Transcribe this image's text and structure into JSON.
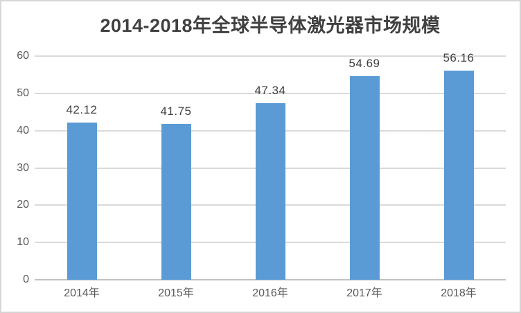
{
  "frame": {
    "background": "#FFFFFF",
    "border_color": "#D6D6D6"
  },
  "chart_data": {
    "type": "bar",
    "title": "2014-2018年全球半导体激光器市场规模",
    "categories": [
      "2014年",
      "2015年",
      "2016年",
      "2017年",
      "2018年"
    ],
    "values": [
      42.12,
      41.75,
      47.34,
      54.69,
      56.16
    ],
    "data_labels": [
      "42.12",
      "41.75",
      "47.34",
      "54.69",
      "56.16"
    ],
    "xlabel": "",
    "ylabel": "",
    "ylim": [
      0,
      60
    ],
    "yticks": [
      0,
      10,
      20,
      30,
      40,
      50,
      60
    ],
    "grid": true,
    "legend": "none",
    "colors": {
      "bar": "#5B9BD5",
      "gridline": "#DADADA",
      "axis_line": "#C0C0C0",
      "tick_label": "#595959",
      "category_label": "#595959",
      "data_label": "#404040",
      "title": "#404040"
    }
  }
}
